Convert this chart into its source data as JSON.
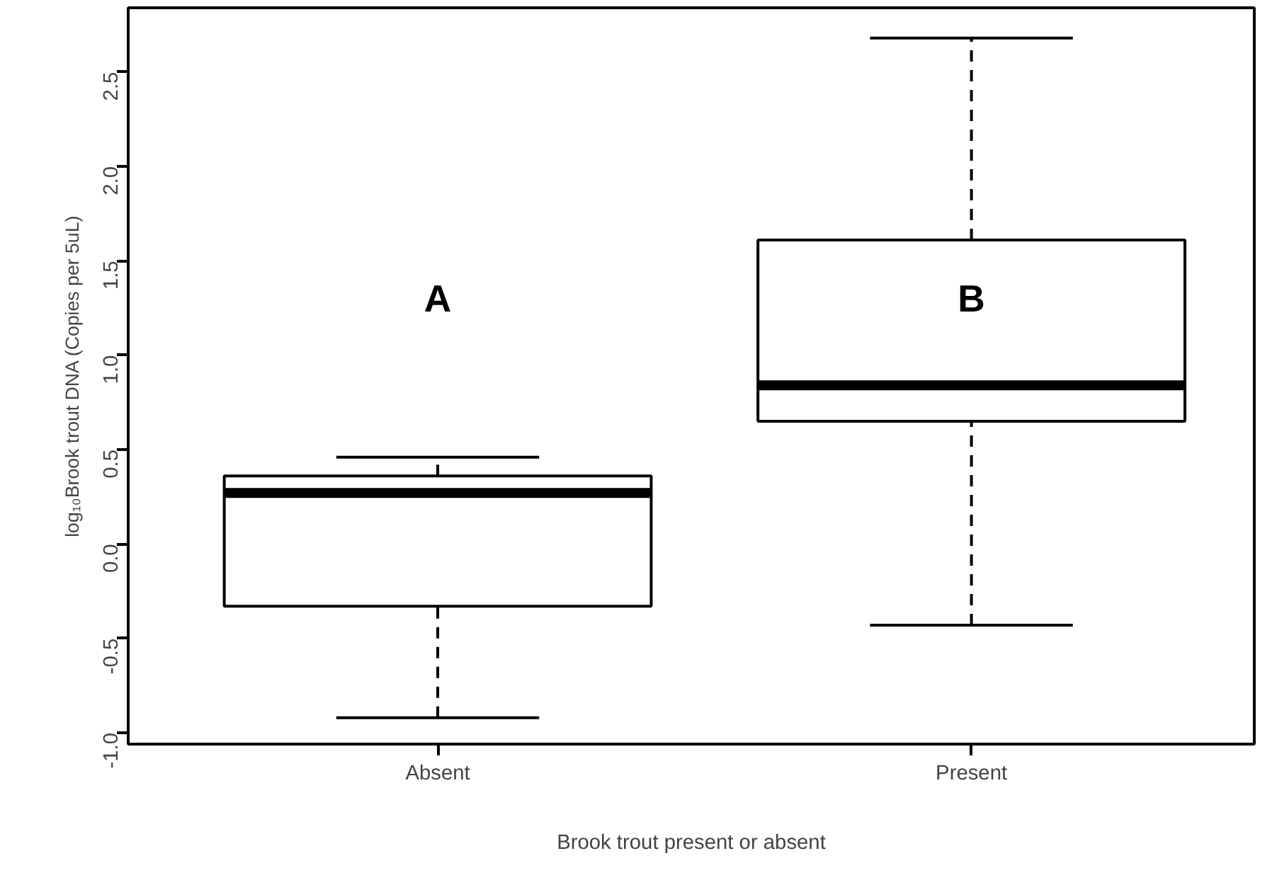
{
  "chart_data": {
    "type": "box",
    "xlabel": "Brook trout present or absent",
    "ylabel": "log₁₀Brook trout DNA (Copies per 5uL)",
    "categories": [
      "Absent",
      "Present"
    ],
    "boxes": [
      {
        "low": -0.92,
        "q1": -0.33,
        "median": 0.27,
        "q3": 0.36,
        "high": 0.46
      },
      {
        "low": -0.43,
        "q1": 0.65,
        "median": 0.84,
        "q3": 1.61,
        "high": 2.68
      }
    ],
    "ylim": [
      -1.06,
      2.84
    ],
    "yticks": [
      {
        "value": -1,
        "label": "-1.0"
      },
      -0.5,
      {
        "value": 0,
        "label": "0.0"
      },
      0.5,
      {
        "value": 1,
        "label": "1.0"
      },
      1.5,
      {
        "value": 2,
        "label": "2.0"
      },
      2.5
    ],
    "annotations": [
      "A",
      "B"
    ]
  }
}
